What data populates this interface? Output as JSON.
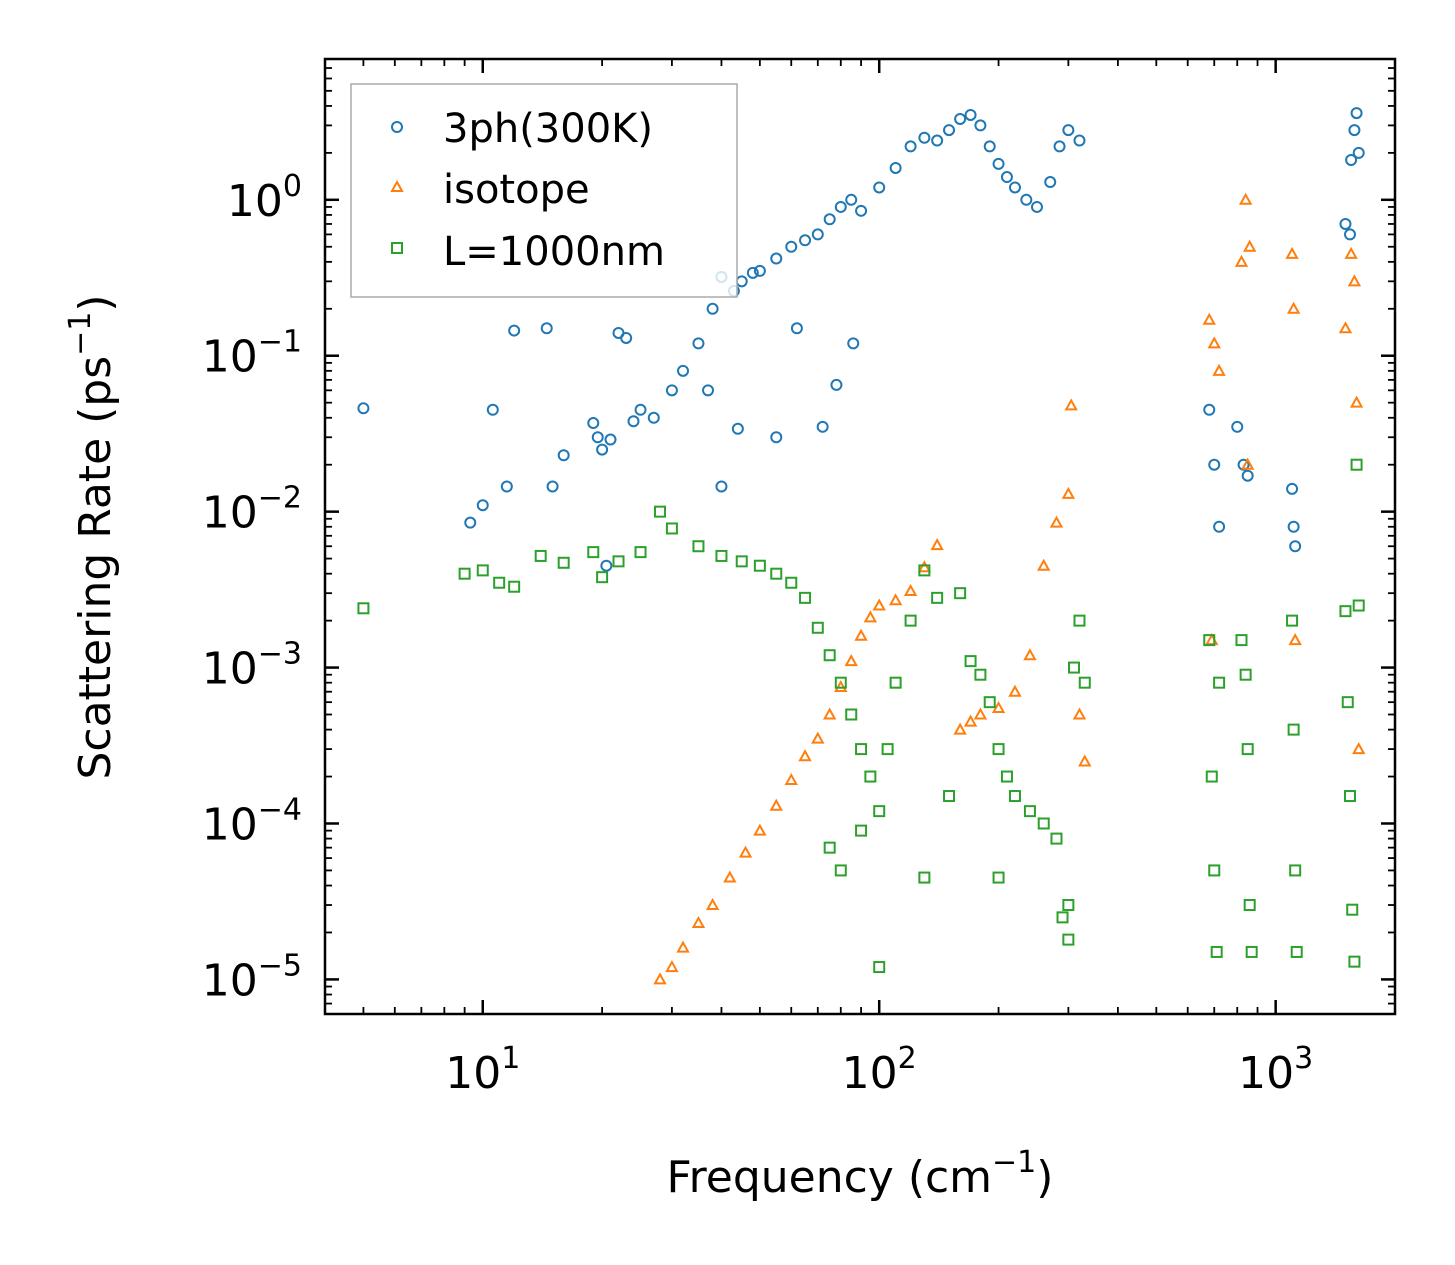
{
  "chart_data": {
    "type": "scatter",
    "title": "",
    "xscale": "log",
    "yscale": "log",
    "xlabel": "Frequency (cm",
    "xlabel_sup": "−1",
    "xlabel_end": ")",
    "ylabel": "Scattering Rate (ps",
    "ylabel_sup": "−1",
    "ylabel_end": ")",
    "xlim": [
      4,
      2000
    ],
    "ylim": [
      6e-06,
      8
    ],
    "xticks": [
      {
        "value": 10,
        "base": "10",
        "exp": "1"
      },
      {
        "value": 100,
        "base": "10",
        "exp": "2"
      },
      {
        "value": 1000,
        "base": "10",
        "exp": "3"
      }
    ],
    "yticks": [
      {
        "value": 1e-05,
        "base": "10",
        "exp": "−5"
      },
      {
        "value": 0.0001,
        "base": "10",
        "exp": "−4"
      },
      {
        "value": 0.001,
        "base": "10",
        "exp": "−3"
      },
      {
        "value": 0.01,
        "base": "10",
        "exp": "−2"
      },
      {
        "value": 0.1,
        "base": "10",
        "exp": "−1"
      },
      {
        "value": 1,
        "base": "10",
        "exp": "0"
      }
    ],
    "legend_position": "top-left",
    "series": [
      {
        "name": "3ph(300K)",
        "marker": "circle",
        "color": "#1f77b4",
        "points": [
          [
            5,
            0.046
          ],
          [
            9.3,
            0.0085
          ],
          [
            10,
            0.011
          ],
          [
            10.6,
            0.045
          ],
          [
            11.5,
            0.0145
          ],
          [
            12,
            0.145
          ],
          [
            14.5,
            0.15
          ],
          [
            15,
            0.0145
          ],
          [
            16,
            0.023
          ],
          [
            19,
            0.037
          ],
          [
            19.5,
            0.03
          ],
          [
            20,
            0.025
          ],
          [
            20.5,
            0.0045
          ],
          [
            21,
            0.029
          ],
          [
            22,
            0.14
          ],
          [
            23,
            0.13
          ],
          [
            24,
            0.038
          ],
          [
            25,
            0.045
          ],
          [
            27,
            0.04
          ],
          [
            30,
            0.06
          ],
          [
            32,
            0.08
          ],
          [
            35,
            0.12
          ],
          [
            38,
            0.2
          ],
          [
            40,
            0.32
          ],
          [
            43,
            0.26
          ],
          [
            45,
            0.3
          ],
          [
            48,
            0.34
          ],
          [
            50,
            0.35
          ],
          [
            55,
            0.42
          ],
          [
            60,
            0.5
          ],
          [
            65,
            0.55
          ],
          [
            70,
            0.6
          ],
          [
            75,
            0.75
          ],
          [
            80,
            0.9
          ],
          [
            85,
            1.0
          ],
          [
            90,
            0.85
          ],
          [
            100,
            1.2
          ],
          [
            110,
            1.6
          ],
          [
            120,
            2.2
          ],
          [
            130,
            2.5
          ],
          [
            140,
            2.4
          ],
          [
            150,
            2.8
          ],
          [
            160,
            3.3
          ],
          [
            170,
            3.5
          ],
          [
            180,
            3.0
          ],
          [
            190,
            2.2
          ],
          [
            200,
            1.7
          ],
          [
            210,
            1.4
          ],
          [
            220,
            1.2
          ],
          [
            235,
            1.0
          ],
          [
            250,
            0.9
          ],
          [
            270,
            1.3
          ],
          [
            285,
            2.2
          ],
          [
            300,
            2.8
          ],
          [
            320,
            2.4
          ],
          [
            44,
            0.034
          ],
          [
            62,
            0.15
          ],
          [
            72,
            0.035
          ],
          [
            78,
            0.065
          ],
          [
            86,
            0.12
          ],
          [
            40,
            0.0145
          ],
          [
            37,
            0.06
          ],
          [
            55,
            0.03
          ],
          [
            680,
            0.045
          ],
          [
            700,
            0.02
          ],
          [
            720,
            0.008
          ],
          [
            800,
            0.035
          ],
          [
            830,
            0.02
          ],
          [
            850,
            0.017
          ],
          [
            1100,
            0.014
          ],
          [
            1110,
            0.008
          ],
          [
            1120,
            0.006
          ],
          [
            1500,
            0.7
          ],
          [
            1550,
            1.8
          ],
          [
            1580,
            2.8
          ],
          [
            1600,
            3.6
          ],
          [
            1620,
            2.0
          ],
          [
            1540,
            0.6
          ]
        ]
      },
      {
        "name": "isotope",
        "marker": "triangle",
        "color": "#ff7f0e",
        "points": [
          [
            28,
            1e-05
          ],
          [
            30,
            1.2e-05
          ],
          [
            32,
            1.6e-05
          ],
          [
            35,
            2.3e-05
          ],
          [
            38,
            3e-05
          ],
          [
            42,
            4.5e-05
          ],
          [
            46,
            6.5e-05
          ],
          [
            50,
            9e-05
          ],
          [
            55,
            0.00013
          ],
          [
            60,
            0.00019
          ],
          [
            65,
            0.00027
          ],
          [
            70,
            0.00035
          ],
          [
            75,
            0.0005
          ],
          [
            80,
            0.00075
          ],
          [
            85,
            0.0011
          ],
          [
            90,
            0.0016
          ],
          [
            95,
            0.0021
          ],
          [
            100,
            0.0025
          ],
          [
            110,
            0.0027
          ],
          [
            120,
            0.0031
          ],
          [
            130,
            0.0044
          ],
          [
            140,
            0.0061
          ],
          [
            160,
            0.0004
          ],
          [
            170,
            0.00045
          ],
          [
            180,
            0.0005
          ],
          [
            200,
            0.00055
          ],
          [
            220,
            0.0007
          ],
          [
            240,
            0.0012
          ],
          [
            260,
            0.0045
          ],
          [
            280,
            0.0085
          ],
          [
            300,
            0.013
          ],
          [
            305,
            0.048
          ],
          [
            320,
            0.0005
          ],
          [
            330,
            0.00025
          ],
          [
            680,
            0.17
          ],
          [
            700,
            0.12
          ],
          [
            720,
            0.08
          ],
          [
            690,
            0.0015
          ],
          [
            820,
            0.4
          ],
          [
            840,
            1.0
          ],
          [
            860,
            0.5
          ],
          [
            850,
            0.02
          ],
          [
            1100,
            0.45
          ],
          [
            1110,
            0.2
          ],
          [
            1120,
            0.0015
          ],
          [
            1500,
            0.15
          ],
          [
            1550,
            0.45
          ],
          [
            1580,
            0.3
          ],
          [
            1600,
            0.05
          ],
          [
            1620,
            0.0003
          ]
        ]
      },
      {
        "name": "L=1000nm",
        "marker": "square",
        "color": "#2ca02c",
        "points": [
          [
            5,
            0.0024
          ],
          [
            9,
            0.004
          ],
          [
            10,
            0.0042
          ],
          [
            11,
            0.0035
          ],
          [
            12,
            0.0033
          ],
          [
            14,
            0.0052
          ],
          [
            16,
            0.0047
          ],
          [
            19,
            0.0055
          ],
          [
            20,
            0.0038
          ],
          [
            22,
            0.0048
          ],
          [
            25,
            0.0055
          ],
          [
            28,
            0.01
          ],
          [
            30,
            0.0078
          ],
          [
            35,
            0.006
          ],
          [
            40,
            0.0052
          ],
          [
            45,
            0.0048
          ],
          [
            50,
            0.0045
          ],
          [
            55,
            0.004
          ],
          [
            60,
            0.0035
          ],
          [
            65,
            0.0028
          ],
          [
            70,
            0.0018
          ],
          [
            75,
            0.0012
          ],
          [
            80,
            0.0008
          ],
          [
            85,
            0.0005
          ],
          [
            90,
            0.0003
          ],
          [
            95,
            0.0002
          ],
          [
            100,
            0.00012
          ],
          [
            105,
            0.0003
          ],
          [
            110,
            0.0008
          ],
          [
            120,
            0.002
          ],
          [
            130,
            0.0042
          ],
          [
            140,
            0.0028
          ],
          [
            150,
            0.00015
          ],
          [
            160,
            0.003
          ],
          [
            170,
            0.0011
          ],
          [
            180,
            0.0009
          ],
          [
            190,
            0.0006
          ],
          [
            200,
            0.0003
          ],
          [
            210,
            0.0002
          ],
          [
            220,
            0.00015
          ],
          [
            240,
            0.00012
          ],
          [
            260,
            0.0001
          ],
          [
            280,
            8e-05
          ],
          [
            300,
            3e-05
          ],
          [
            310,
            0.001
          ],
          [
            320,
            0.002
          ],
          [
            330,
            0.0008
          ],
          [
            100,
            1.2e-05
          ],
          [
            130,
            4.5e-05
          ],
          [
            75,
            7e-05
          ],
          [
            80,
            5e-05
          ],
          [
            90,
            9e-05
          ],
          [
            200,
            4.5e-05
          ],
          [
            290,
            2.5e-05
          ],
          [
            300,
            1.8e-05
          ],
          [
            680,
            0.0015
          ],
          [
            690,
            0.0002
          ],
          [
            700,
            5e-05
          ],
          [
            710,
            1.5e-05
          ],
          [
            720,
            0.0008
          ],
          [
            820,
            0.0015
          ],
          [
            840,
            0.0009
          ],
          [
            850,
            0.0003
          ],
          [
            860,
            3e-05
          ],
          [
            870,
            1.5e-05
          ],
          [
            1100,
            0.002
          ],
          [
            1110,
            0.0004
          ],
          [
            1120,
            5e-05
          ],
          [
            1130,
            1.5e-05
          ],
          [
            1500,
            0.0023
          ],
          [
            1520,
            0.0006
          ],
          [
            1540,
            0.00015
          ],
          [
            1560,
            2.8e-05
          ],
          [
            1580,
            1.3e-05
          ],
          [
            1600,
            0.02
          ],
          [
            1620,
            0.0025
          ]
        ]
      }
    ]
  }
}
